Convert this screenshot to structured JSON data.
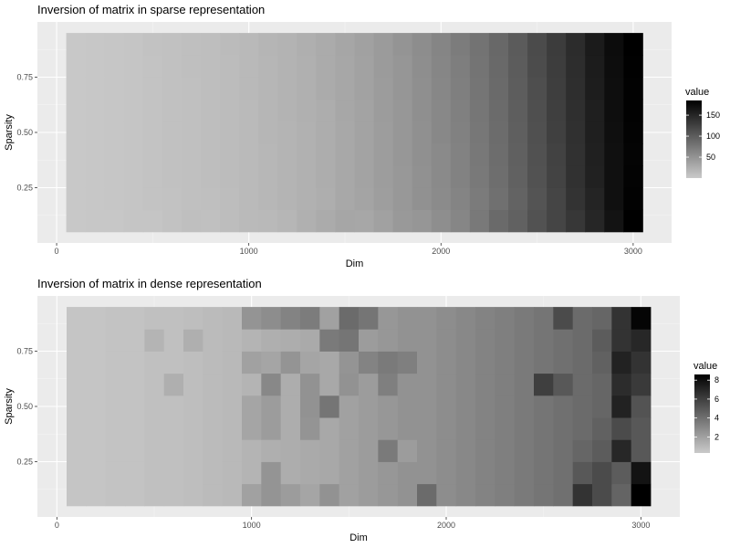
{
  "chart_data": [
    {
      "type": "heatmap",
      "title": "Inversion of matrix in sparse representation",
      "xlabel": "Dim",
      "ylabel": "Sparsity",
      "xlim": [
        -100,
        3200
      ],
      "ylim": [
        0.0,
        1.0
      ],
      "x_ticks": [
        0,
        1000,
        2000,
        3000
      ],
      "x_tick_labels": [
        "0",
        "1000",
        "2000",
        "3000"
      ],
      "y_ticks": [
        0.25,
        0.5,
        0.75
      ],
      "y_tick_labels": [
        "0.25",
        "0.50",
        "0.75"
      ],
      "x_values": [
        100,
        200,
        300,
        400,
        500,
        600,
        700,
        800,
        900,
        1000,
        1100,
        1200,
        1300,
        1400,
        1500,
        1600,
        1700,
        1800,
        1900,
        2000,
        2100,
        2200,
        2300,
        2400,
        2500,
        2600,
        2700,
        2800,
        2900,
        3000
      ],
      "y_values": [
        0.1,
        0.2,
        0.3,
        0.4,
        0.5,
        0.6,
        0.7,
        0.8,
        0.9
      ],
      "value_min": 0,
      "value_max": 185,
      "legend": {
        "title": "value",
        "ticks": [
          50,
          100,
          150
        ],
        "tick_labels": [
          "50",
          "100",
          "150"
        ],
        "placement": "right"
      },
      "values": [
        [
          2,
          3,
          3,
          5,
          5,
          7,
          10,
          9,
          12,
          15,
          16,
          18,
          24,
          28,
          33,
          32,
          38,
          45,
          48,
          55,
          62,
          74,
          88,
          96,
          110,
          122,
          135,
          150,
          168,
          185
        ],
        [
          2,
          3,
          4,
          5,
          6,
          7,
          9,
          10,
          12,
          15,
          17,
          20,
          23,
          26,
          31,
          35,
          40,
          46,
          52,
          58,
          64,
          72,
          82,
          94,
          108,
          122,
          138,
          152,
          170,
          183
        ],
        [
          2,
          3,
          4,
          5,
          6,
          8,
          9,
          11,
          13,
          15,
          17,
          20,
          23,
          27,
          31,
          36,
          41,
          46,
          52,
          59,
          66,
          74,
          84,
          96,
          110,
          124,
          140,
          155,
          170,
          182
        ],
        [
          2,
          3,
          4,
          5,
          6,
          8,
          9,
          11,
          13,
          15,
          17,
          20,
          23,
          27,
          31,
          36,
          41,
          47,
          53,
          59,
          66,
          75,
          85,
          97,
          111,
          125,
          140,
          156,
          170,
          181
        ],
        [
          2,
          3,
          4,
          5,
          6,
          8,
          9,
          11,
          13,
          15,
          18,
          20,
          23,
          27,
          31,
          36,
          41,
          47,
          53,
          60,
          67,
          76,
          86,
          98,
          112,
          126,
          141,
          157,
          171,
          182
        ],
        [
          2,
          3,
          4,
          5,
          6,
          8,
          9,
          11,
          13,
          15,
          18,
          21,
          24,
          27,
          32,
          36,
          42,
          47,
          54,
          60,
          68,
          77,
          87,
          99,
          113,
          127,
          142,
          157,
          172,
          183
        ],
        [
          2,
          3,
          4,
          5,
          6,
          8,
          9,
          11,
          13,
          16,
          18,
          21,
          24,
          28,
          32,
          37,
          42,
          48,
          54,
          61,
          69,
          78,
          88,
          100,
          114,
          128,
          143,
          158,
          172,
          183
        ],
        [
          2,
          3,
          4,
          5,
          6,
          8,
          10,
          11,
          13,
          16,
          18,
          21,
          24,
          28,
          32,
          37,
          43,
          48,
          55,
          62,
          70,
          79,
          89,
          101,
          115,
          129,
          144,
          159,
          173,
          184
        ],
        [
          2,
          3,
          4,
          5,
          7,
          8,
          10,
          11,
          14,
          16,
          19,
          21,
          25,
          28,
          33,
          38,
          43,
          49,
          56,
          63,
          71,
          80,
          90,
          102,
          116,
          130,
          145,
          160,
          174,
          185
        ]
      ]
    },
    {
      "type": "heatmap",
      "title": "Inversion of matrix in dense representation",
      "xlabel": "Dim",
      "ylabel": "Sparsity",
      "xlim": [
        -100,
        3200
      ],
      "ylim": [
        0.0,
        1.0
      ],
      "x_ticks": [
        0,
        1000,
        2000,
        3000
      ],
      "x_tick_labels": [
        "0",
        "1000",
        "2000",
        "3000"
      ],
      "y_ticks": [
        0.25,
        0.5,
        0.75
      ],
      "y_tick_labels": [
        "0.25",
        "0.50",
        "0.75"
      ],
      "x_values": [
        100,
        200,
        300,
        400,
        500,
        600,
        700,
        800,
        900,
        1000,
        1100,
        1200,
        1300,
        1400,
        1500,
        1600,
        1700,
        1800,
        1900,
        2000,
        2100,
        2200,
        2300,
        2400,
        2500,
        2600,
        2700,
        2800,
        2900,
        3000
      ],
      "y_values": [
        0.1,
        0.2,
        0.3,
        0.4,
        0.5,
        0.6,
        0.7,
        0.8,
        0.9
      ],
      "value_min": 0.3,
      "value_max": 8.6,
      "legend": {
        "title": "value",
        "ticks": [
          2,
          4,
          6,
          8
        ],
        "tick_labels": [
          "2",
          "4",
          "6",
          "8"
        ],
        "placement": "right"
      },
      "values": [
        [
          0.5,
          0.5,
          0.6,
          0.6,
          0.7,
          0.7,
          0.8,
          0.9,
          1.0,
          2.0,
          2.5,
          2.2,
          1.8,
          2.6,
          2.0,
          2.2,
          2.4,
          2.6,
          4.2,
          2.8,
          3.0,
          3.2,
          3.4,
          3.6,
          3.8,
          4.0,
          6.5,
          5.5,
          4.5,
          8.6
        ],
        [
          0.5,
          0.5,
          0.6,
          0.6,
          0.7,
          0.7,
          0.8,
          0.9,
          1.0,
          1.2,
          2.5,
          1.5,
          1.6,
          1.7,
          2.0,
          2.2,
          2.4,
          2.6,
          2.6,
          2.8,
          3.0,
          3.2,
          3.4,
          3.6,
          3.8,
          4.0,
          5.0,
          5.5,
          4.8,
          7.8
        ],
        [
          0.5,
          0.5,
          0.6,
          0.6,
          0.7,
          0.7,
          0.8,
          0.9,
          1.0,
          1.2,
          1.4,
          1.5,
          1.6,
          1.7,
          2.0,
          2.2,
          3.6,
          2.2,
          2.6,
          2.8,
          3.0,
          3.2,
          3.4,
          3.6,
          3.8,
          4.0,
          4.4,
          4.8,
          7.0,
          5.0
        ],
        [
          0.5,
          0.5,
          0.6,
          0.6,
          0.7,
          0.7,
          0.8,
          0.9,
          1.0,
          1.8,
          2.2,
          1.5,
          2.5,
          1.7,
          2.0,
          2.2,
          2.4,
          2.6,
          2.6,
          2.8,
          3.0,
          3.2,
          3.4,
          3.6,
          3.8,
          4.0,
          4.2,
          4.6,
          5.5,
          5.0
        ],
        [
          0.5,
          0.5,
          0.6,
          0.6,
          0.7,
          0.7,
          0.8,
          0.9,
          1.0,
          1.8,
          2.2,
          1.5,
          2.6,
          3.8,
          2.0,
          2.2,
          2.4,
          2.6,
          2.6,
          2.8,
          3.0,
          3.2,
          3.4,
          3.6,
          3.8,
          4.0,
          4.2,
          4.4,
          7.2,
          5.2
        ],
        [
          0.5,
          0.5,
          0.6,
          0.6,
          0.7,
          1.4,
          0.8,
          0.9,
          1.0,
          1.2,
          3.0,
          1.5,
          2.6,
          1.7,
          2.6,
          2.2,
          3.4,
          2.6,
          2.6,
          2.8,
          3.0,
          3.2,
          3.4,
          3.6,
          6.0,
          5.0,
          4.2,
          4.4,
          6.8,
          6.2
        ],
        [
          0.5,
          0.5,
          0.6,
          0.6,
          0.7,
          0.7,
          0.8,
          0.9,
          1.0,
          2.0,
          1.8,
          2.5,
          1.8,
          1.7,
          2.5,
          3.2,
          3.6,
          3.4,
          2.6,
          2.8,
          3.0,
          3.2,
          3.4,
          3.6,
          3.8,
          4.0,
          4.2,
          4.6,
          7.2,
          6.5
        ],
        [
          0.5,
          0.5,
          0.6,
          0.6,
          1.2,
          0.7,
          1.4,
          0.9,
          1.0,
          1.2,
          1.4,
          1.5,
          1.6,
          3.6,
          3.8,
          2.2,
          2.4,
          2.6,
          2.6,
          2.8,
          3.0,
          3.2,
          3.4,
          3.6,
          3.8,
          4.0,
          4.2,
          4.8,
          6.5,
          7.0
        ],
        [
          0.5,
          0.5,
          0.6,
          0.6,
          0.7,
          0.7,
          0.8,
          0.9,
          1.0,
          2.5,
          2.8,
          3.2,
          3.5,
          2.0,
          4.2,
          3.8,
          2.4,
          2.6,
          2.6,
          2.8,
          3.0,
          3.2,
          3.4,
          3.6,
          3.8,
          5.5,
          4.2,
          4.4,
          6.5,
          8.4
        ]
      ]
    }
  ]
}
